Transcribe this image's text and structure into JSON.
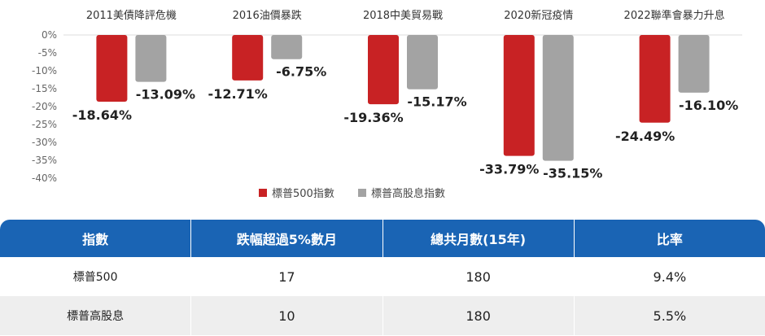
{
  "chart_data": {
    "type": "bar",
    "categories": [
      "2011美債降評危機",
      "2016油價暴跌",
      "2018中美貿易戰",
      "2020新冠疫情",
      "2022聯準會暴力升息"
    ],
    "series": [
      {
        "name": "標普500指數",
        "values": [
          -18.64,
          -12.71,
          -19.36,
          -33.79,
          -24.49
        ],
        "labels": [
          "-18.64%",
          "-12.71%",
          "-19.36%",
          "-33.79%",
          "-24.49%"
        ],
        "color": "#c82224"
      },
      {
        "name": "標普高股息指數",
        "values": [
          -13.09,
          -6.75,
          -15.17,
          -35.15,
          -16.1
        ],
        "labels": [
          "-13.09%",
          "-6.75%",
          "-15.17%",
          "-35.15%",
          "-16.10%"
        ],
        "color": "#a3a3a3"
      }
    ],
    "yticks": [
      0,
      -5,
      -10,
      -15,
      -20,
      -25,
      -30,
      -35,
      -40
    ],
    "ytick_labels": [
      "0%",
      "-5%",
      "-10%",
      "-15%",
      "-20%",
      "-25%",
      "-30%",
      "-35%",
      "-40%"
    ],
    "ylim": [
      -40,
      0
    ],
    "legend_position": "bottom",
    "categories_position": "top"
  },
  "table": {
    "headers": [
      "指數",
      "跌幅超過5%數月",
      "總共月數(15年)",
      "比率"
    ],
    "rows": [
      [
        "標普500",
        "17",
        "180",
        "9.4%"
      ],
      [
        "標普高股息",
        "10",
        "180",
        "5.5%"
      ]
    ]
  }
}
